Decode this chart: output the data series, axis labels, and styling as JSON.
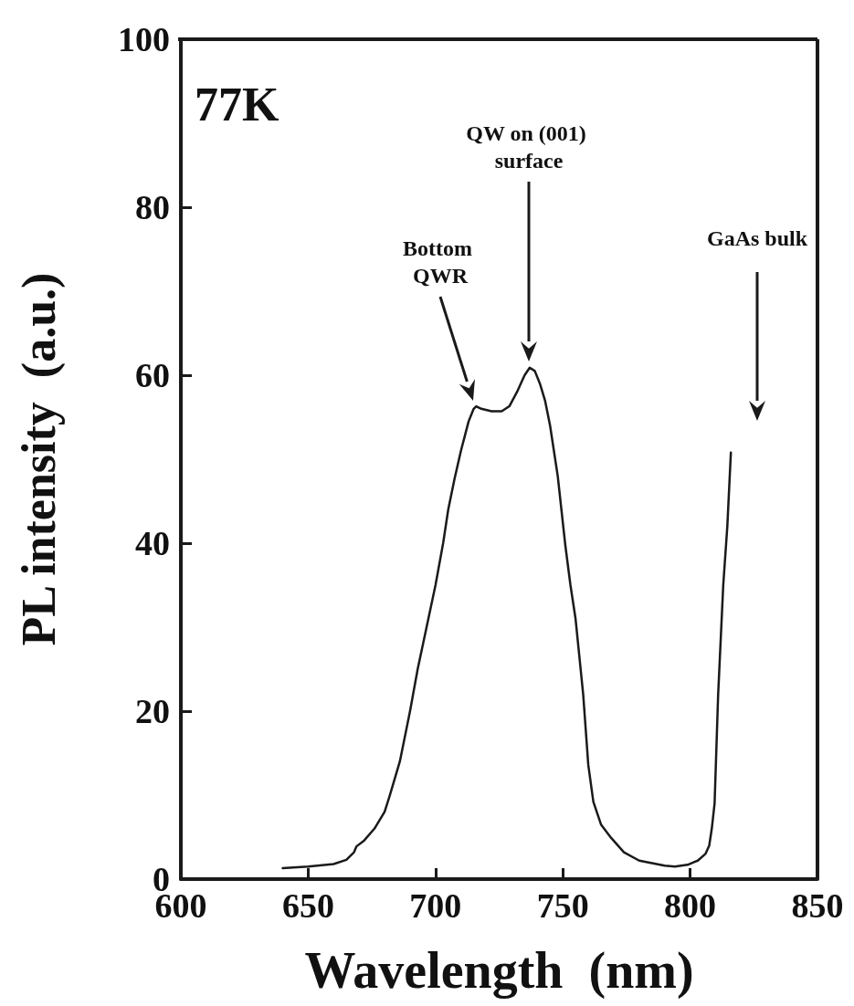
{
  "chart_data": {
    "type": "line",
    "xlabel": "Wavelength  (nm)",
    "ylabel": "PL intensity  (a.u.)",
    "xlim": [
      600,
      850
    ],
    "xticks": [
      600,
      650,
      700,
      750,
      800,
      850
    ],
    "ylim": [
      0,
      100
    ],
    "yticks": [
      0,
      20,
      40,
      60,
      80,
      100
    ],
    "grid": false,
    "marker": "none",
    "line_style": "solid",
    "series": [
      {
        "color": "#1a1a1a",
        "x": [
          640,
          650,
          660,
          665,
          668,
          669,
          672,
          676,
          680,
          682,
          686,
          690,
          693,
          696.5,
          700,
          703,
          705,
          707.5,
          710,
          713,
          715,
          716,
          718,
          722,
          726,
          729,
          732,
          735,
          737,
          739,
          741,
          743,
          745,
          748,
          751,
          753,
          755,
          758,
          760,
          762,
          765,
          769,
          774,
          780,
          785,
          790,
          794,
          799,
          803,
          806,
          807.5,
          808.5,
          809.6,
          811,
          813,
          814.6,
          816
        ],
        "values": [
          1.3,
          1.5,
          1.8,
          2.3,
          3.2,
          3.9,
          4.6,
          6,
          8,
          9.9,
          14,
          20,
          25,
          30,
          35,
          40,
          44,
          47.7,
          51,
          54.5,
          56,
          56.3,
          56,
          55.7,
          55.7,
          56.3,
          58,
          60,
          60.9,
          60.5,
          59,
          57,
          54,
          48,
          39.7,
          35,
          31,
          22,
          13.6,
          9.2,
          6.5,
          4.9,
          3.2,
          2.2,
          1.9,
          1.6,
          1.5,
          1.7,
          2.2,
          3,
          4,
          6,
          9,
          22,
          35,
          42,
          50.8
        ]
      }
    ],
    "annotations": [
      "77K",
      "Bottom QWR",
      "QW on (001) surface",
      "GaAs bulk"
    ]
  }
}
